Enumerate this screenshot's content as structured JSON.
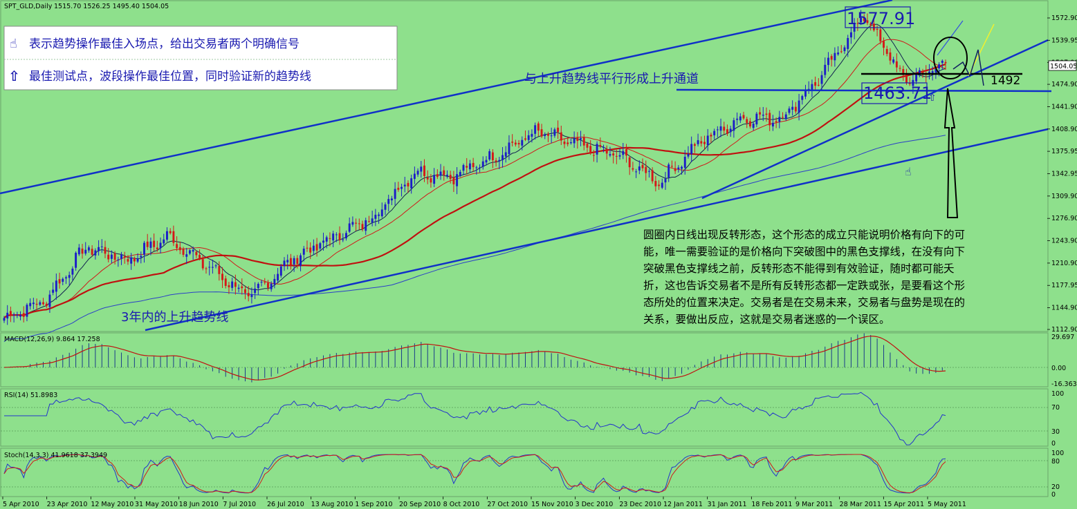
{
  "header": {
    "symbol_line": "SPT_GLD,Daily",
    "ohlc": "1515.70 1526.25 1495.40 1504.05"
  },
  "legend_box": {
    "line1_icon": "pointing-hand-icon",
    "line1": "表示趋势操作最佳入场点，给出交易者两个明确信号",
    "line2_icon": "up-arrow-icon",
    "line2": "最佳测试点，波段操作最佳位置，同时验证新的趋势线"
  },
  "annotations": {
    "channel_label": "与上升趋势线平行形成上升通道",
    "trend_label": "3年内的上升趋势线",
    "peak_label": "1577.91",
    "support_label": "1463.71",
    "level_label": "1492",
    "commentary_lines": [
      "圆圈内日线出现反转形态，这个形态的成立只能说明价格有向下的可",
      "能，唯一需要验证的是价格向下突破图中的黑色支撑线，在没有向下",
      "突破黑色支撑线之前，反转形态不能得到有效验证，随时都可能夭",
      "折，这也告诉交易者不是所有反转形态都一定跌或张，是要看这个形",
      "态所处的位置来决定。交易者是在交易未来，交易者与盘势是现在的",
      "关系，要做出反应，这就是交易者迷惑的一个误区。"
    ]
  },
  "price_axis": {
    "ticks": [
      "1572.90",
      "1539.95",
      "1507.00",
      "1474.90",
      "1441.90",
      "1408.90",
      "1375.95",
      "1342.95",
      "1309.90",
      "1276.90",
      "1243.90",
      "1210.90",
      "1177.95",
      "1144.90",
      "1112.90"
    ],
    "current_tag": "1504.05"
  },
  "panels": {
    "macd": {
      "label": "MACD(12,26,9) 9.864 17.258",
      "ticks": [
        "29.697",
        "0.00",
        "-16.363"
      ]
    },
    "rsi": {
      "label": "RSI(14) 51.8983",
      "ticks": [
        "100",
        "70",
        "30",
        "0"
      ]
    },
    "stoch": {
      "label": "Stoch(14,3,3) 41.9618 37.3949",
      "ticks": [
        "100",
        "80",
        "20",
        "0"
      ]
    }
  },
  "date_axis": [
    "5 Apr 2010",
    "23 Apr 2010",
    "12 May 2010",
    "31 May 2010",
    "18 Jun 2010",
    "7 Jul 2010",
    "26 Jul 2010",
    "13 Aug 2010",
    "1 Sep 2010",
    "20 Sep 2010",
    "8 Oct 2010",
    "27 Oct 2010",
    "15 Nov 2010",
    "3 Dec 2010",
    "23 Dec 2010",
    "12 Jan 2011",
    "31 Jan 2011",
    "18 Feb 2011",
    "9 Mar 2011",
    "28 Mar 2011",
    "15 Apr 2011",
    "5 May 2011"
  ],
  "colors": {
    "background": "#8ee08c",
    "bull": "#1c1cc8",
    "bear": "#d41818",
    "trendline": "#1030c8",
    "ma_fast": "#d01818",
    "ma_long": "#c01010",
    "ma_slow": "#2a3fc8",
    "rsi": "#2233cc",
    "yellow": "#f0f030"
  },
  "chart_data": {
    "type": "candlestick",
    "symbol": "SPT_GLD",
    "timeframe": "Daily",
    "last_ohlc": {
      "open": 1515.7,
      "high": 1526.25,
      "low": 1495.4,
      "close": 1504.05
    },
    "anchors": [
      {
        "date": "5 Apr 2010",
        "close": 1130
      },
      {
        "date": "23 Apr 2010",
        "close": 1155
      },
      {
        "date": "12 May 2010",
        "close": 1235
      },
      {
        "date": "31 May 2010",
        "close": 1215
      },
      {
        "date": "18 Jun 2010",
        "close": 1250
      },
      {
        "date": "7 Jul 2010",
        "close": 1205
      },
      {
        "date": "26 Jul 2010",
        "close": 1160
      },
      {
        "date": "13 Aug 2010",
        "close": 1215
      },
      {
        "date": "1 Sep 2010",
        "close": 1248
      },
      {
        "date": "20 Sep 2010",
        "close": 1278
      },
      {
        "date": "8 Oct 2010",
        "close": 1345
      },
      {
        "date": "27 Oct 2010",
        "close": 1340
      },
      {
        "date": "15 Nov 2010",
        "close": 1370
      },
      {
        "date": "3 Dec 2010",
        "close": 1405
      },
      {
        "date": "23 Dec 2010",
        "close": 1385
      },
      {
        "date": "12 Jan 2011",
        "close": 1370
      },
      {
        "date": "31 Jan 2011",
        "close": 1330
      },
      {
        "date": "18 Feb 2011",
        "close": 1390
      },
      {
        "date": "9 Mar 2011",
        "close": 1425
      },
      {
        "date": "28 Mar 2011",
        "close": 1425
      },
      {
        "date": "15 Apr 2011",
        "close": 1490
      },
      {
        "date": "2 May 2011",
        "close": 1577.91
      },
      {
        "date": "5 May 2011",
        "close": 1480
      },
      {
        "date": "11 May 2011",
        "close": 1504.05
      }
    ],
    "levels": {
      "peak": 1577.91,
      "support": 1463.71,
      "black_support": 1492
    },
    "ylim": [
      1112.9,
      1572.9
    ],
    "indicators": {
      "macd": [
        9.864,
        17.258
      ],
      "rsi": 51.8983,
      "stoch": [
        41.9618,
        37.3949
      ]
    }
  }
}
